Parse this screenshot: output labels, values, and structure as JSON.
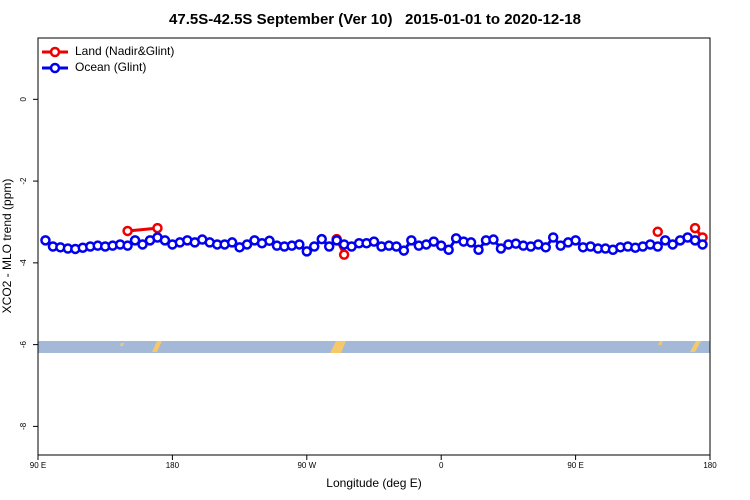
{
  "chart_data": {
    "type": "line",
    "title": "47.5S-42.5S September (Ver 10)   2015-01-01 to 2020-12-18",
    "xlabel": "Longitude (deg E)",
    "ylabel": "XCO2 - MLO trend (ppm)",
    "xlim": [
      90,
      540
    ],
    "ylim": [
      -8.7,
      1.5
    ],
    "xticks": [
      {
        "value": 90,
        "label": "90 E"
      },
      180,
      {
        "value": 270,
        "label": "90 W"
      },
      {
        "value": 360,
        "label": "0"
      },
      {
        "value": 450,
        "label": "90 E"
      },
      {
        "value": 540,
        "label": "180"
      }
    ],
    "yticks": [
      0,
      -2,
      -4,
      -6,
      -8
    ],
    "legend": "top-left",
    "series": [
      {
        "name": "Land (Nadir&Glint)",
        "color": "#ee0000",
        "x": [
          150,
          170,
          175,
          290,
          295,
          300,
          505,
          510,
          530,
          535
        ],
        "values": [
          -3.22,
          -3.15,
          null,
          -3.42,
          -3.8,
          null,
          -3.24,
          null,
          -3.15,
          -3.38
        ]
      },
      {
        "name": "Ocean (Glint)",
        "color": "#0000ee",
        "x": [
          95,
          100,
          105,
          110,
          115,
          120,
          125,
          130,
          135,
          140,
          145,
          150,
          155,
          160,
          165,
          170,
          175,
          180,
          185,
          190,
          195,
          200,
          205,
          210,
          215,
          220,
          225,
          230,
          235,
          240,
          245,
          250,
          255,
          260,
          265,
          270,
          275,
          280,
          285,
          290,
          295,
          300,
          305,
          310,
          315,
          320,
          325,
          330,
          335,
          340,
          345,
          350,
          355,
          360,
          365,
          370,
          375,
          380,
          385,
          390,
          395,
          400,
          405,
          410,
          415,
          420,
          425,
          430,
          435,
          440,
          445,
          450,
          455,
          460,
          465,
          470,
          475,
          480,
          485,
          490,
          495,
          500,
          505,
          510,
          515,
          520,
          525,
          530,
          535
        ],
        "values": [
          -3.45,
          -3.6,
          -3.62,
          -3.65,
          -3.66,
          -3.63,
          -3.6,
          -3.58,
          -3.6,
          -3.58,
          -3.55,
          -3.58,
          -3.45,
          -3.55,
          -3.45,
          -3.38,
          -3.45,
          -3.55,
          -3.5,
          -3.45,
          -3.5,
          -3.43,
          -3.5,
          -3.55,
          -3.55,
          -3.5,
          -3.62,
          -3.55,
          -3.45,
          -3.52,
          -3.46,
          -3.58,
          -3.6,
          -3.58,
          -3.55,
          -3.72,
          -3.6,
          -3.42,
          -3.6,
          -3.45,
          -3.55,
          -3.6,
          -3.52,
          -3.52,
          -3.48,
          -3.6,
          -3.58,
          -3.6,
          -3.7,
          -3.45,
          -3.58,
          -3.55,
          -3.48,
          -3.58,
          -3.68,
          -3.4,
          -3.48,
          -3.5,
          -3.68,
          -3.45,
          -3.43,
          -3.65,
          -3.55,
          -3.53,
          -3.58,
          -3.6,
          -3.55,
          -3.62,
          -3.38,
          -3.58,
          -3.5,
          -3.45,
          -3.62,
          -3.6,
          -3.65,
          -3.65,
          -3.68,
          -3.62,
          -3.6,
          -3.63,
          -3.6,
          -3.55,
          -3.6,
          -3.45,
          -3.55,
          -3.45,
          -3.38,
          -3.45,
          -3.55
        ]
      }
    ]
  }
}
